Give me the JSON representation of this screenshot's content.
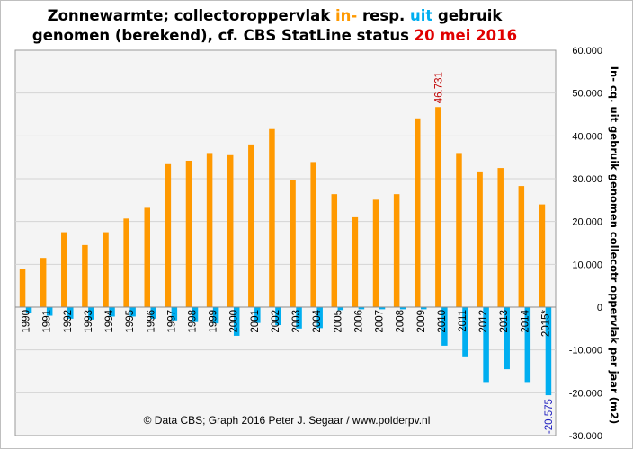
{
  "title": {
    "part1": "Zonnewarmte; collectoroppervlak ",
    "in_word": "in-",
    "part2": " resp. ",
    "uit_word": "uit",
    "part3": " gebruik",
    "line2": "genomen (berekend), cf. CBS StatLine status ",
    "date": "20 mei 2016"
  },
  "colors": {
    "in": "#ff9900",
    "uit": "#00aef0",
    "date": "#e00000",
    "max_label": "#c00000",
    "min_label": "#2020c0",
    "plot_bg": "#f4f4f4",
    "grid": "#d4d4d4"
  },
  "chart_data": {
    "type": "bar",
    "title": "Zonnewarmte; collectoroppervlak in- resp. uit gebruik genomen (berekend), cf. CBS StatLine status 20 mei 2016",
    "ylabel": "In- cq. uit gebruik genomen collecotr oppervlak per jaar (m2)",
    "xlabel": "",
    "ylim": [
      -30000,
      60000
    ],
    "yticks": [
      {
        "value": 60000,
        "label": "60.000"
      },
      {
        "value": 50000,
        "label": "50.000"
      },
      {
        "value": 40000,
        "label": "40.000"
      },
      {
        "value": 30000,
        "label": "30.000"
      },
      {
        "value": 20000,
        "label": "20.000"
      },
      {
        "value": 10000,
        "label": "10.000"
      },
      {
        "value": 0,
        "label": "0"
      },
      {
        "value": -10000,
        "label": "-10.000"
      },
      {
        "value": -20000,
        "label": "-20.000"
      },
      {
        "value": -30000,
        "label": "-30.000"
      }
    ],
    "grid": true,
    "y_axis_side": "right",
    "categories": [
      "1990",
      "1991",
      "1992",
      "1993",
      "1994",
      "1995",
      "1996",
      "1997",
      "1998",
      "1999",
      "2000",
      "2001",
      "2002",
      "2003",
      "2004",
      "2005",
      "2006",
      "2007",
      "2008",
      "2009",
      "2010",
      "2011",
      "2012",
      "2013",
      "2014",
      "2015*"
    ],
    "series": [
      {
        "key": "in",
        "values": [
          9000,
          11500,
          17500,
          14500,
          17500,
          20700,
          23200,
          33400,
          34200,
          36000,
          35500,
          38000,
          41600,
          29700,
          33900,
          26400,
          21000,
          25100,
          26400,
          44100,
          46731,
          36000,
          31700,
          32500,
          28300,
          24000
        ]
      },
      {
        "key": "uit",
        "values": [
          -1400,
          -2000,
          -2700,
          -2900,
          -2200,
          -2200,
          -2700,
          -3100,
          -3500,
          -3800,
          -6700,
          -3700,
          -4200,
          -5000,
          -4900,
          -700,
          -500,
          -500,
          -500,
          -500,
          -9000,
          -11500,
          -17500,
          -14500,
          -17500,
          -20575
        ]
      }
    ],
    "data_labels": [
      {
        "series": "in",
        "category": "2010",
        "text": "46.731"
      },
      {
        "series": "uit",
        "category": "2015*",
        "text": "-20.575"
      }
    ],
    "annotation": "© Data CBS;  Graph  2016  Peter J. Segaar  /  www.polderpv.nl"
  }
}
